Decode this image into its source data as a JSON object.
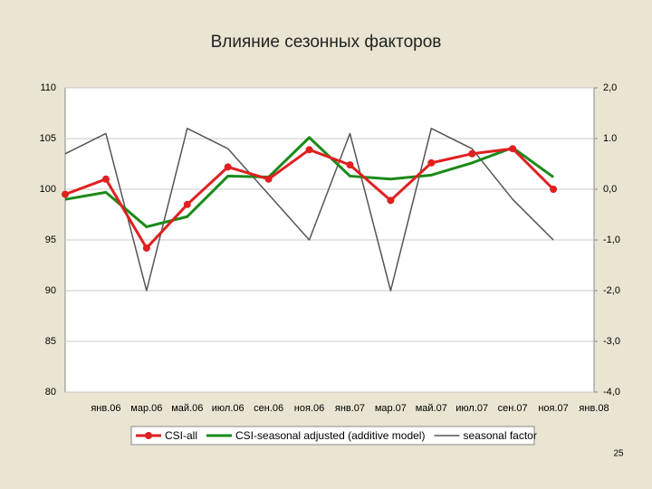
{
  "chart_data": {
    "type": "line",
    "title": "Влияние сезонных факторов",
    "categories": [
      null,
      "янв.06",
      "мар.06",
      "май.06",
      "июл.06",
      "сен.06",
      "ноя.06",
      "янв.07",
      "мар.07",
      "май.07",
      "июл.07",
      "сен.07",
      "ноя.07",
      "янв.08"
    ],
    "series": [
      {
        "name": "CSI-all",
        "color": "#e02020",
        "markers": true,
        "values": [
          99.5,
          101,
          94.2,
          98.5,
          102.2,
          101,
          103.9,
          102.4,
          98.9,
          102.6,
          103.5,
          104,
          100,
          null
        ]
      },
      {
        "name": "CSI-seasonal adjusted (additive model)",
        "color": "#1a8a1a",
        "values": [
          99,
          99.7,
          96.3,
          97.3,
          101.3,
          101.2,
          105.1,
          101.3,
          101,
          101.4,
          102.6,
          104.1,
          101.2,
          null
        ]
      },
      {
        "name": "seasonal factor",
        "color": "#555555",
        "axis": "y2",
        "values": [
          0.7,
          1.1,
          -2.0,
          1.2,
          0.8,
          -0.1,
          -1.0,
          1.1,
          -2.0,
          1.2,
          0.8,
          -0.2,
          -1.0,
          null
        ]
      }
    ],
    "ylim": [
      80,
      110
    ],
    "yticks": [
      80,
      85,
      90,
      95,
      100,
      105,
      110
    ],
    "y2lim": [
      -4,
      2
    ],
    "y2ticks": [
      {
        "value": -4,
        "label": "-4,0"
      },
      {
        "value": -3,
        "label": "-3,0"
      },
      {
        "value": -2,
        "label": "-2,0"
      },
      {
        "value": -1,
        "label": "-1,0"
      },
      {
        "value": 0,
        "label": "0,0"
      },
      {
        "value": 1,
        "label": "1.0"
      },
      {
        "value": 2,
        "label": "2,0"
      }
    ],
    "grid": true,
    "legend": "bottom"
  },
  "slide_number": "25"
}
